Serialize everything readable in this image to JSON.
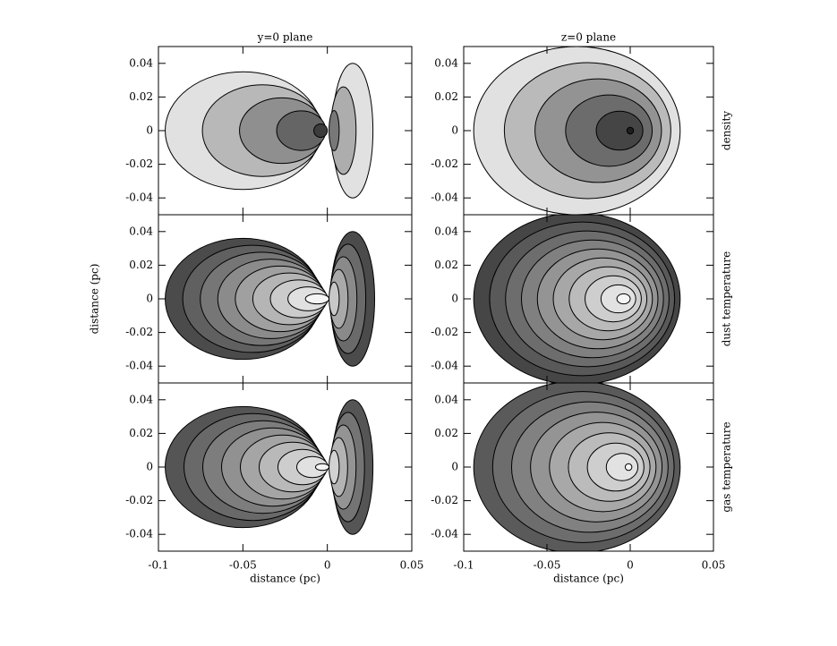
{
  "chart_data": [
    {
      "type": "contour",
      "title": "y=0 plane",
      "xlim": [
        -0.1,
        0.05
      ],
      "ylim": [
        -0.05,
        0.05
      ],
      "xticks": [
        -0.1,
        -0.05,
        0,
        0.05
      ],
      "yticks": [
        -0.04,
        -0.02,
        0,
        0.02,
        0.04
      ]
    },
    {
      "type": "contour",
      "title": "z=0 plane",
      "row_label": "density",
      "xlim": [
        -0.1,
        0.05
      ],
      "ylim": [
        -0.05,
        0.05
      ],
      "xticks": [
        -0.1,
        -0.05,
        0,
        0.05
      ],
      "yticks": [
        -0.04,
        -0.02,
        0,
        0.02,
        0.04
      ]
    },
    {
      "type": "contour",
      "ylabel": "distance (pc)",
      "xlim": [
        -0.1,
        0.05
      ],
      "ylim": [
        -0.05,
        0.05
      ],
      "xticks": [
        -0.1,
        -0.05,
        0,
        0.05
      ],
      "yticks": [
        -0.04,
        -0.02,
        0,
        0.02,
        0.04
      ]
    },
    {
      "type": "contour",
      "row_label": "dust temperature",
      "xlim": [
        -0.1,
        0.05
      ],
      "ylim": [
        -0.05,
        0.05
      ],
      "xticks": [
        -0.1,
        -0.05,
        0,
        0.05
      ],
      "yticks": [
        -0.04,
        -0.02,
        0,
        0.02,
        0.04
      ]
    },
    {
      "type": "contour",
      "xlabel": "distance (pc)",
      "xlim": [
        -0.1,
        0.05
      ],
      "ylim": [
        -0.05,
        0.05
      ],
      "xticks": [
        -0.1,
        -0.05,
        0,
        0.05
      ],
      "yticks": [
        -0.04,
        -0.02,
        0,
        0.02,
        0.04
      ]
    },
    {
      "type": "contour",
      "xlabel": "distance (pc)",
      "row_label": "gas temperature",
      "xlim": [
        -0.1,
        0.05
      ],
      "ylim": [
        -0.05,
        0.05
      ],
      "xticks": [
        -0.1,
        -0.05,
        0,
        0.05
      ],
      "yticks": [
        -0.04,
        -0.02,
        0,
        0.02,
        0.04
      ]
    }
  ]
}
